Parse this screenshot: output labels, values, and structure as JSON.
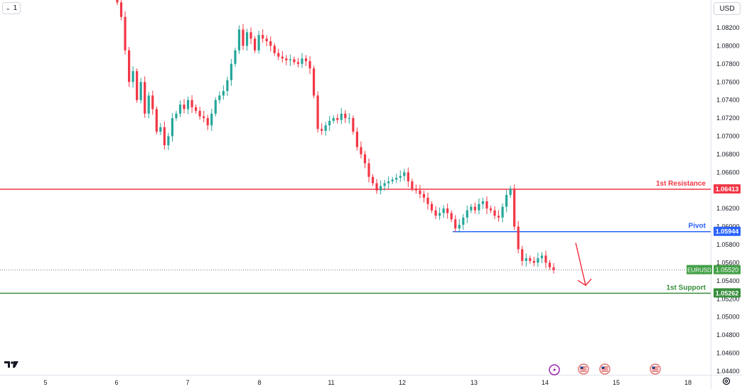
{
  "toolbar": {
    "interval_label": "1",
    "currency_label": "USD"
  },
  "icons": {
    "logo": "tradingview-logo-icon",
    "settings": "gear-icon",
    "interval": "chevron-down-icon",
    "events": [
      "lightning-icon",
      "us-flag-icon",
      "us-flag-icon",
      "us-flag-icon"
    ]
  },
  "chart_data": {
    "type": "candlestick",
    "symbol": "EURUSD",
    "last_price": 1.0552,
    "ylim": [
      1.0435,
      1.0845
    ],
    "y_ticks": [
      1.082,
      1.08,
      1.078,
      1.076,
      1.074,
      1.072,
      1.07,
      1.068,
      1.066,
      1.064,
      1.062,
      1.06,
      1.058,
      1.056,
      1.054,
      1.052,
      1.05,
      1.048,
      1.046,
      1.044
    ],
    "y_tick_labels": [
      "1.08200",
      "1.08000",
      "1.07800",
      "1.07600",
      "1.07400",
      "1.07200",
      "1.07000",
      "1.06800",
      "1.06600",
      "1.06400",
      "1.06200",
      "1.06000",
      "1.05800",
      "1.05600",
      "1.05400",
      "1.05200",
      "1.05000",
      "1.04800",
      "1.04600",
      "1.04400"
    ],
    "x_ticks": [
      5,
      6,
      7,
      8,
      11,
      12,
      13,
      14,
      15,
      18
    ],
    "x_tick_labels": [
      "5",
      "6",
      "7",
      "8",
      "11",
      "12",
      "13",
      "14",
      "15",
      "18"
    ],
    "levels": [
      {
        "name": "1st Resistance",
        "value": 1.06413,
        "label": "1.06413",
        "color": "#f23645"
      },
      {
        "name": "Pivot",
        "value": 1.05944,
        "label": "1.05944",
        "color": "#2962ff"
      },
      {
        "name": "1st Support",
        "value": 1.05262,
        "label": "1.05262",
        "color": "#388e3c"
      }
    ],
    "price_tag": {
      "symbol": "EURUSD",
      "value": "1.05520",
      "color": "#43a047"
    },
    "colors": {
      "up": "#26a69a",
      "down": "#f23645",
      "arrow": "#f23645"
    },
    "forecast_arrow": {
      "direction": "down",
      "from_price": 1.0582,
      "to_price": 1.0535
    },
    "close_series": [
      1.0848,
      1.0832,
      1.0795,
      1.076,
      1.0772,
      1.074,
      1.076,
      1.0725,
      1.0745,
      1.073,
      1.0705,
      1.071,
      1.069,
      1.07,
      1.072,
      1.0725,
      1.0735,
      1.073,
      1.074,
      1.0732,
      1.0728,
      1.0722,
      1.072,
      1.0712,
      1.0725,
      1.074,
      1.0745,
      1.075,
      1.0762,
      1.078,
      1.0795,
      1.0818,
      1.08,
      1.0815,
      1.0808,
      1.0795,
      1.0812,
      1.0808,
      1.0805,
      1.08,
      1.0792,
      1.0788,
      1.0786,
      1.0784,
      1.0785,
      1.0782,
      1.078,
      1.0786,
      1.0783,
      1.0775,
      1.0745,
      1.0708,
      1.0706,
      1.0712,
      1.0717,
      1.072,
      1.0718,
      1.0725,
      1.072,
      1.072,
      1.0705,
      1.0688,
      1.068,
      1.067,
      1.0655,
      1.0648,
      1.064,
      1.0645,
      1.0648,
      1.065,
      1.0652,
      1.0654,
      1.0656,
      1.066,
      1.065,
      1.0642,
      1.064,
      1.0636,
      1.0632,
      1.0625,
      1.0618,
      1.0612,
      1.0615,
      1.062,
      1.0615,
      1.0608,
      1.0598,
      1.0602,
      1.061,
      1.0618,
      1.0622,
      1.0618,
      1.0625,
      1.0628,
      1.062,
      1.0618,
      1.0612,
      1.061,
      1.0622,
      1.0635,
      1.0642,
      1.06,
      1.0575,
      1.0562,
      1.0565,
      1.0562,
      1.056,
      1.0565,
      1.0568,
      1.056,
      1.0555,
      1.0552
    ]
  }
}
